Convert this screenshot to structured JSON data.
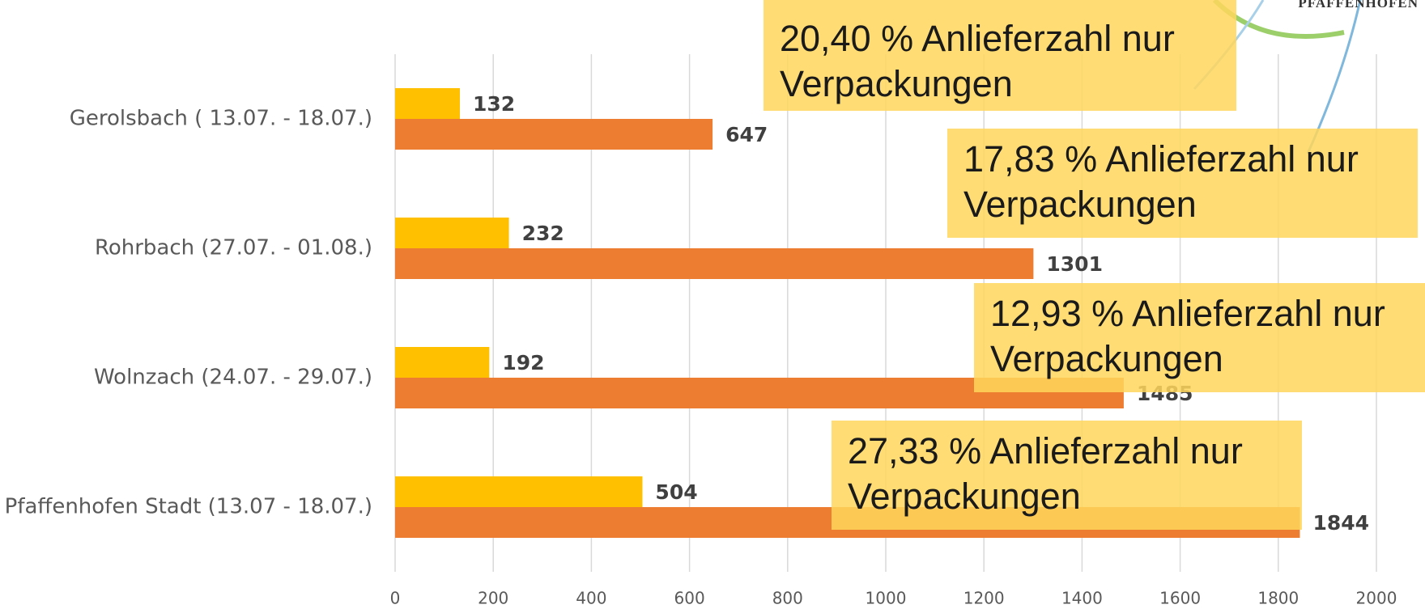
{
  "chart_data": {
    "type": "bar",
    "orientation": "horizontal",
    "categories": [
      "Gerolsbach ( 13.07. - 18.07.)",
      "Rohrbach (27.07. - 01.08.)",
      "Wolnzach (24.07. - 29.07.)",
      "Pfaffenhofen Stadt (13.07 - 18.07.)"
    ],
    "series": [
      {
        "color": "#FFC000",
        "values": [
          132,
          232,
          192,
          504
        ]
      },
      {
        "color": "#ED7D31",
        "values": [
          647,
          1301,
          1485,
          1844
        ]
      }
    ],
    "xlim": [
      0,
      2000
    ],
    "xticks": [
      0,
      200,
      400,
      600,
      800,
      1000,
      1200,
      1400,
      1600,
      1800,
      2000
    ],
    "grid": true,
    "annotations": [
      "20,40 % Anlieferzahl nur Verpackungen",
      "17,83 % Anlieferzahl nur Verpackungen",
      "12,93 % Anlieferzahl nur Verpackungen",
      "27,33 % Anlieferzahl nur Verpackungen"
    ]
  },
  "logo_text": "PFAFFENHOFEN"
}
